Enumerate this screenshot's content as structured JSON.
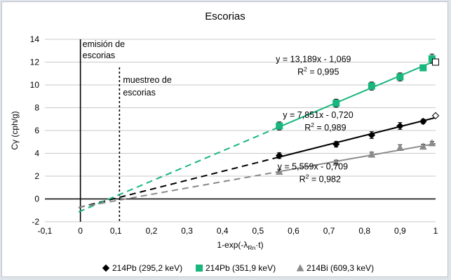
{
  "chart_data": {
    "type": "scatter",
    "title": "Escorias",
    "xlabel": "1-exp(-λ",
    "xlabel_sub": "Rn",
    "xlabel_tail": "·t)",
    "ylabel": "Cγ (cph/g)",
    "xlim": [
      -0.1,
      1.0
    ],
    "ylim": [
      -2,
      14
    ],
    "xticks": [
      -0.1,
      0,
      0.1,
      0.2,
      0.3,
      0.4,
      0.5,
      0.6,
      0.7,
      0.8,
      0.9,
      1
    ],
    "xtick_labels": [
      "-0,1",
      "0",
      "0,1",
      "0,2",
      "0,3",
      "0,4",
      "0,5",
      "0,6",
      "0,7",
      "0,8",
      "0,9",
      "1"
    ],
    "yticks": [
      -2,
      0,
      2,
      4,
      6,
      8,
      10,
      12,
      14
    ],
    "ytick_labels": [
      "-2",
      "0",
      "2",
      "4",
      "6",
      "8",
      "10",
      "12",
      "14"
    ],
    "grid": "horizontal",
    "legend_position": "bottom",
    "annotations": {
      "emision_line1": "emisión de",
      "emision_line2": "escorias",
      "muestreo_line1": "muestreo de",
      "muestreo_line2": "escorias"
    },
    "emision_x": 0,
    "muestreo_x": 0.11,
    "series": [
      {
        "name": "214Pb (295,2 keV)",
        "color": "#000000",
        "marker": "diamond",
        "x": [
          0.56,
          0.72,
          0.82,
          0.9,
          0.965,
          1.0
        ],
        "y": [
          3.8,
          4.8,
          5.6,
          6.4,
          6.8,
          7.3
        ],
        "err": [
          0.25,
          0.25,
          0.3,
          0.3,
          0.2,
          0
        ],
        "fit": {
          "slope": 7.851,
          "intercept": -0.72,
          "text": "y = 7,851x - 0,720",
          "r2_label": "R",
          "r2_exp": "2",
          "r2_value": " = 0,989"
        }
      },
      {
        "name": "214Pb (351,9 keV)",
        "color": "#19b67d",
        "marker": "square",
        "x": [
          0.56,
          0.72,
          0.82,
          0.9,
          0.965,
          0.99,
          1.0
        ],
        "y": [
          6.4,
          8.4,
          9.9,
          10.7,
          11.5,
          12.3,
          12.0
        ],
        "err": [
          0.35,
          0.35,
          0.35,
          0.35,
          0.2,
          0.4,
          0.2
        ],
        "fit": {
          "slope": 13.189,
          "intercept": -1.069,
          "text": "y = 13,189x - 1,069",
          "r2_label": "R",
          "r2_exp": "2",
          "r2_value": " = 0,995"
        }
      },
      {
        "name": "214Bi (609,3 keV)",
        "color": "#8a8a8a",
        "marker": "triangle",
        "x": [
          0.56,
          0.72,
          0.82,
          0.9,
          0.965,
          0.99
        ],
        "y": [
          2.4,
          3.2,
          3.9,
          4.5,
          4.6,
          4.9
        ],
        "err": [
          0.2,
          0.2,
          0.2,
          0.25,
          0.2,
          0.15
        ],
        "fit": {
          "slope": 5.559,
          "intercept": -0.709,
          "text": "y = 5,559x - 0,709",
          "r2_label": "R",
          "r2_exp": "2",
          "r2_value": " = 0,982"
        }
      }
    ]
  }
}
